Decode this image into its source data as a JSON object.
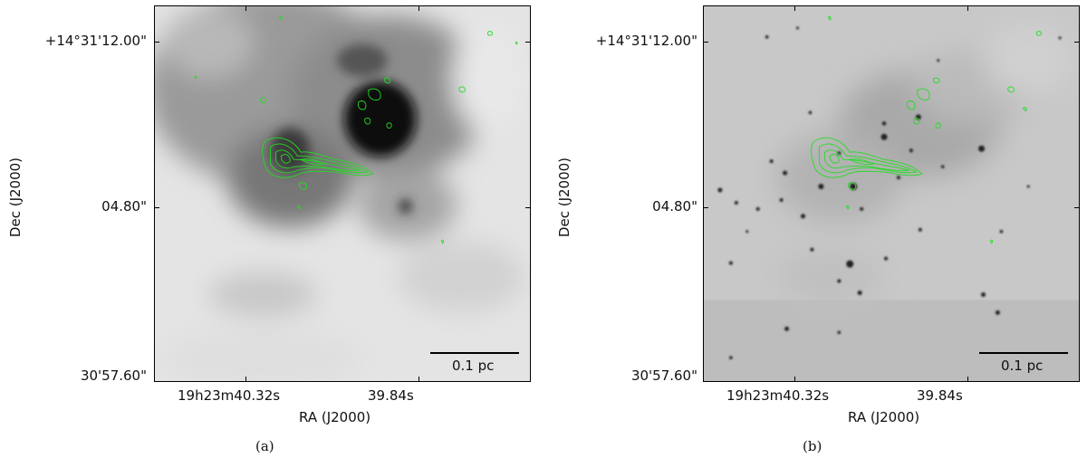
{
  "panels": [
    {
      "label": "(a)",
      "y_ticks": [
        "+14°31'12.00\"",
        "04.80\"",
        "30'57.60\""
      ],
      "x_ticks": [
        "19h23m40.32s",
        "39.84s"
      ],
      "x_title": "RA (J2000)",
      "y_title": "Dec (J2000)",
      "scale_bar": "0.1 pc",
      "contour_color": "#22dd22"
    },
    {
      "label": "(b)",
      "y_ticks": [
        "+14°31'12.00\"",
        "04.80\"",
        "30'57.60\""
      ],
      "x_ticks": [
        "19h23m40.32s",
        "39.84s"
      ],
      "x_title": "RA (J2000)",
      "y_title": "Dec (J2000)",
      "scale_bar": "0.1 pc",
      "contour_color": "#22dd22"
    }
  ]
}
